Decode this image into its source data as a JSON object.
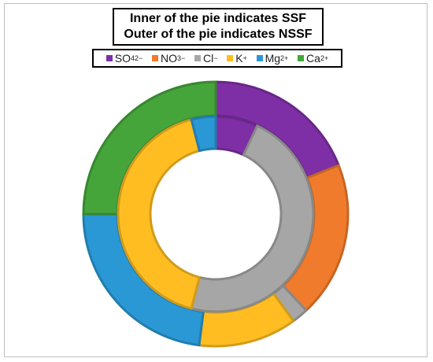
{
  "chart_data": {
    "type": "pie",
    "subtype": "nested-donut",
    "title_lines": [
      "Inner of the pie indicates SSF",
      "Outer of the pie indicates NSSF"
    ],
    "legend_position": "top",
    "legend": [
      {
        "base": "SO",
        "sub": "4",
        "sup": "2−",
        "color": "#7f2fa5"
      },
      {
        "base": "NO",
        "sub": "3",
        "sup": "−",
        "color": "#f07b2c"
      },
      {
        "base": "Cl",
        "sub": "",
        "sup": "−",
        "color": "#a6a6a6"
      },
      {
        "base": "K",
        "sub": "",
        "sup": "+",
        "color": "#ffbd21"
      },
      {
        "base": "Mg",
        "sub": "",
        "sup": "2+",
        "color": "#2a98d4"
      },
      {
        "base": "Ca",
        "sub": "",
        "sup": "2+",
        "color": "#45a53b"
      }
    ],
    "series": [
      {
        "ring": "inner",
        "categories": [
          "SO₄²⁻",
          "NO₃⁻",
          "Cl⁻",
          "K⁺",
          "Mg²⁺",
          "Ca²⁺"
        ],
        "values": [
          7.0,
          0.0,
          47.0,
          42.0,
          4.0,
          0.0
        ]
      },
      {
        "ring": "outer",
        "categories": [
          "SO₄²⁻",
          "NO₃⁻",
          "Cl⁻",
          "K⁺",
          "Mg²⁺",
          "Ca²⁺"
        ],
        "values": [
          19.0,
          19.0,
          2.0,
          12.0,
          23.0,
          25.0
        ]
      }
    ]
  }
}
